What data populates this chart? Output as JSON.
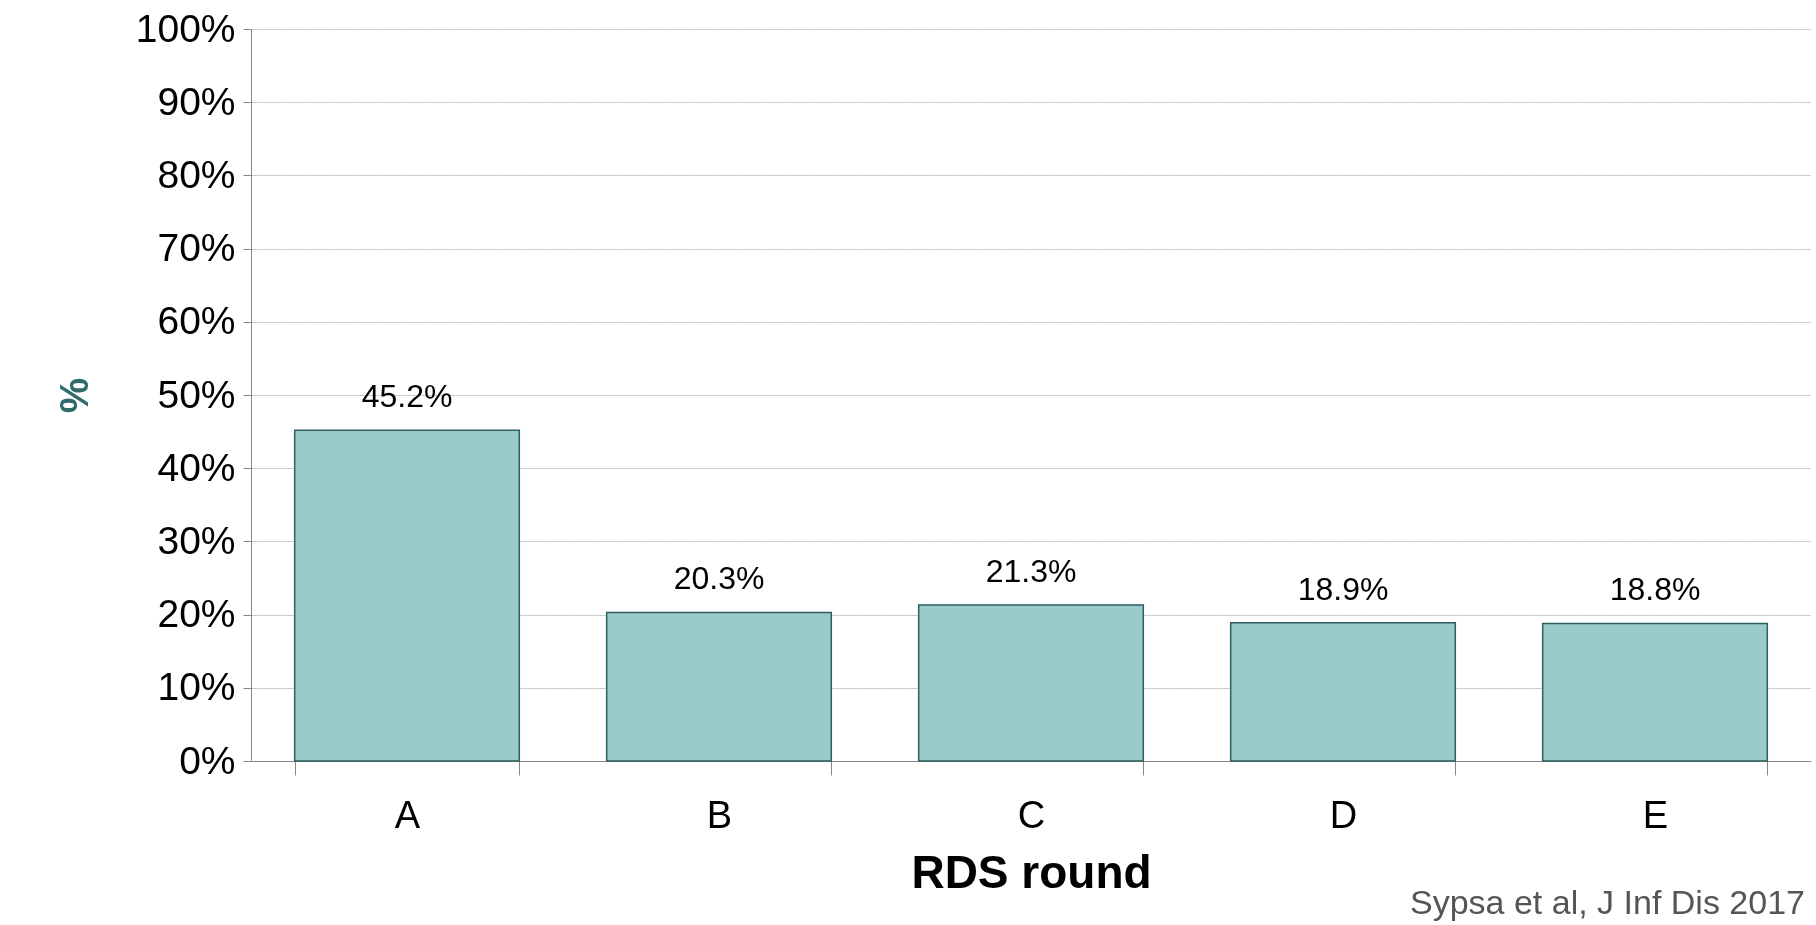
{
  "chart_data": {
    "type": "bar",
    "xlabel": "RDS round",
    "ylabel": "%",
    "categories": [
      "A",
      "B",
      "C",
      "D",
      "E"
    ],
    "values": [
      45.2,
      20.3,
      21.3,
      18.9,
      18.8
    ],
    "value_labels": [
      "45.2%",
      "20.3%",
      "21.3%",
      "18.9%",
      "18.8%"
    ],
    "color": "#9acbcb",
    "ylim": [
      0,
      100
    ],
    "yticks": [
      {
        "value": 0,
        "label": "0%"
      },
      {
        "value": 10,
        "label": "10%"
      },
      {
        "value": 20,
        "label": "20%"
      },
      {
        "value": 30,
        "label": "30%"
      },
      {
        "value": 40,
        "label": "40%"
      },
      {
        "value": 50,
        "label": "50%"
      },
      {
        "value": 60,
        "label": "60%"
      },
      {
        "value": 70,
        "label": "70%"
      },
      {
        "value": 80,
        "label": "80%"
      },
      {
        "value": 90,
        "label": "90%"
      },
      {
        "value": 100,
        "label": "100%"
      }
    ],
    "grid": "y",
    "annotations": [
      "Sypsa et al, J Inf Dis 2017"
    ]
  }
}
